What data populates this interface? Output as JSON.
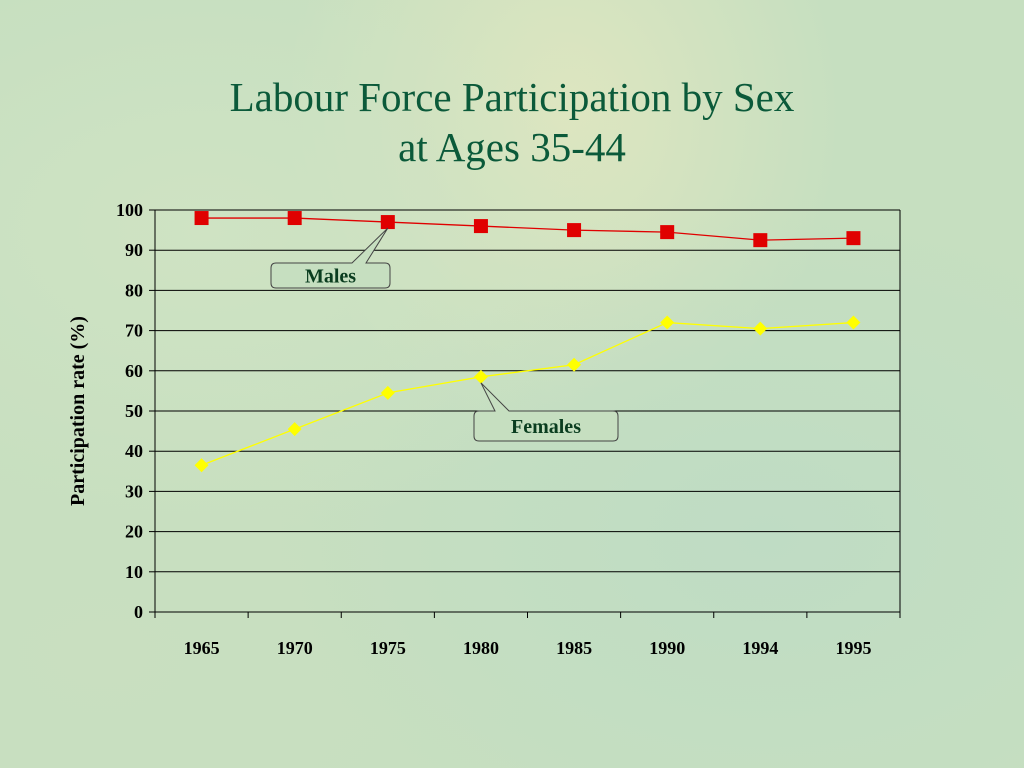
{
  "chart_data": {
    "type": "line",
    "title_line1": "Labour Force Participation by Sex",
    "title_line2": "at Ages 35-44",
    "xlabel": "",
    "ylabel": "Participation rate (%)",
    "categories": [
      "1965",
      "1970",
      "1975",
      "1980",
      "1985",
      "1990",
      "1994",
      "1995"
    ],
    "ylim": [
      0,
      100
    ],
    "yticks": [
      0,
      10,
      20,
      30,
      40,
      50,
      60,
      70,
      80,
      90,
      100
    ],
    "grid": true,
    "series": [
      {
        "name": "Males",
        "values": [
          98,
          98,
          97,
          96,
          95,
          94.5,
          92.5,
          93
        ],
        "color": "#e00000",
        "marker": "square"
      },
      {
        "name": "Females",
        "values": [
          36.5,
          45.5,
          54.5,
          58.5,
          61.5,
          72,
          70.5,
          72
        ],
        "color": "#ffff00",
        "marker": "diamond"
      }
    ]
  }
}
